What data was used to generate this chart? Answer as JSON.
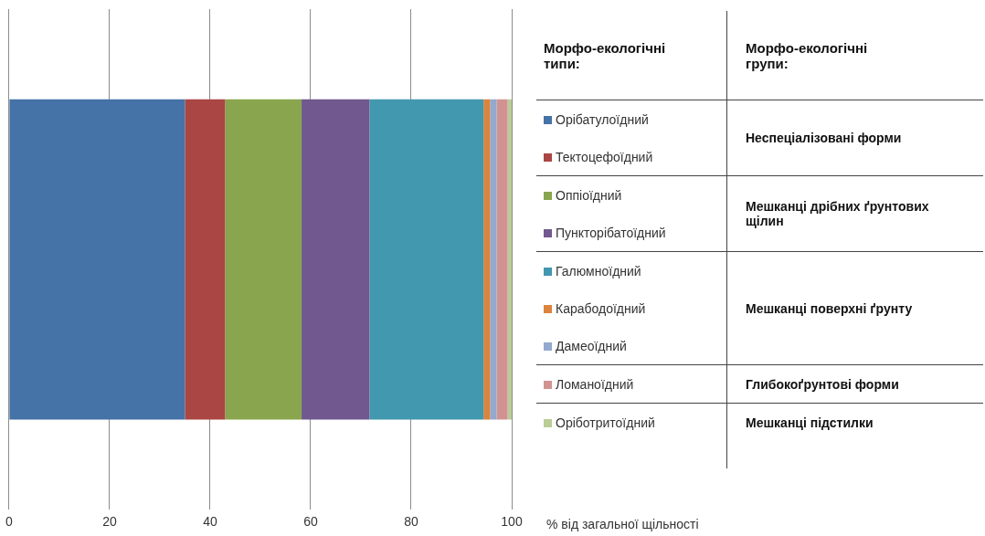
{
  "chart_data": {
    "type": "bar",
    "orientation": "horizontal",
    "stacked": true,
    "categories": [
      null
    ],
    "series": [
      {
        "name": "Орібатулоїдний",
        "color": "#4572a7",
        "values": [
          35
        ]
      },
      {
        "name": "Тектоцефоїдний",
        "color": "#aa4643",
        "values": [
          8
        ]
      },
      {
        "name": "Оппіоїдний",
        "color": "#89a54e",
        "values": [
          15.2
        ]
      },
      {
        "name": "Пункторібатоїдний",
        "color": "#71588f",
        "values": [
          13.5
        ]
      },
      {
        "name": "Галюмноїдний",
        "color": "#4198af",
        "values": [
          22.7
        ]
      },
      {
        "name": "Карабодоїдний",
        "color": "#db843d",
        "values": [
          1.3
        ]
      },
      {
        "name": "Дамеоїдний",
        "color": "#93a9cf",
        "values": [
          1.3
        ]
      },
      {
        "name": "Ломаноїдний",
        "color": "#d19392",
        "values": [
          2.2
        ]
      },
      {
        "name": "Оріботритоїдний",
        "color": "#b9cd96",
        "values": [
          0.8
        ]
      }
    ],
    "xlim": [
      0,
      100
    ],
    "xticks": [
      0,
      20,
      40,
      60,
      80,
      100
    ],
    "grid": "x",
    "legend": "right",
    "xlabel": "% від загальної щільності",
    "legend_title": "Морфо-екологічні типи:",
    "annotations": [
      "Морфо-екологічні групи:",
      "Неспеціалізовані форми",
      "Мешканці дрібних ґрунтових щілин",
      "Мешканці поверхні ґрунту",
      "Глибокоґрунтові форми",
      "Мешканці підстилки"
    ]
  }
}
